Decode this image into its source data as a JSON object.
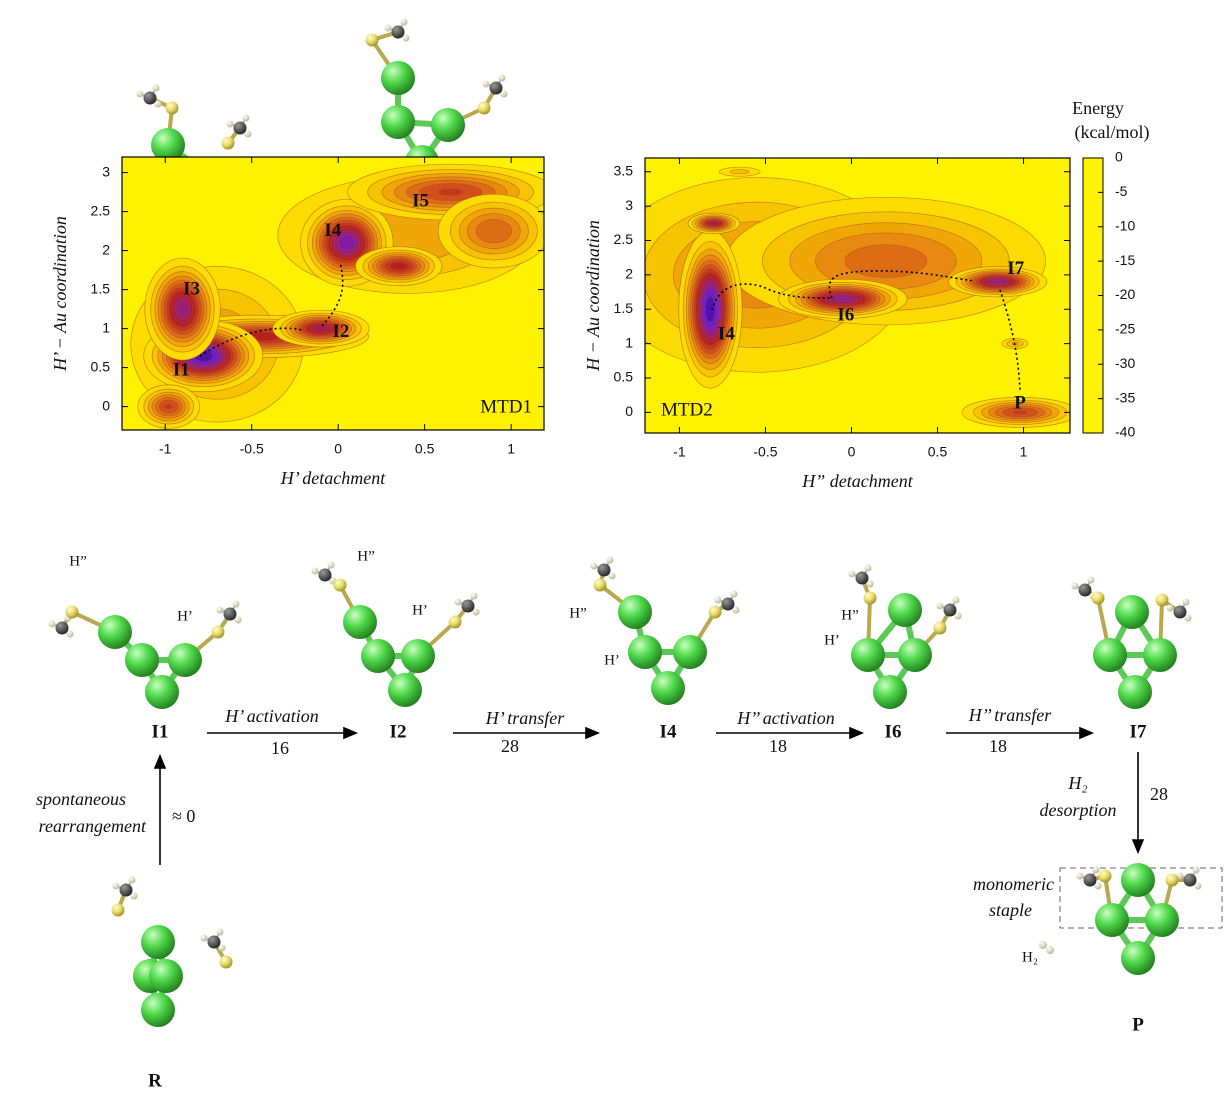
{
  "chart_data": [
    {
      "type": "heatmap",
      "label": "MTD1",
      "xlabel": "H’ detachment",
      "ylabel": "H’ − Au coordination",
      "xlim": [
        -1.25,
        1.19
      ],
      "ylim": [
        -0.3,
        3.2
      ],
      "xticks": [
        -1,
        -0.5,
        0,
        0.5,
        1
      ],
      "yticks": [
        0,
        0.5,
        1,
        1.5,
        2,
        2.5,
        3
      ],
      "minima": [
        {
          "name": null,
          "x": -0.7,
          "y": 0.8,
          "energy": -10,
          "sx": 0.3,
          "sy": 0.6
        },
        {
          "name": null,
          "x": 0.4,
          "y": 2.2,
          "energy": -10,
          "sx": 0.45,
          "sy": 0.45
        },
        {
          "name": null,
          "x": -0.45,
          "y": 0.9,
          "energy": -22,
          "sx": 0.3,
          "sy": 0.13
        },
        {
          "name": "I1",
          "x": -0.78,
          "y": 0.65,
          "energy": -35,
          "sx": 0.15,
          "sy": 0.2
        },
        {
          "name": "I2",
          "x": -0.1,
          "y": 1.0,
          "energy": -25,
          "sx": 0.13,
          "sy": 0.11
        },
        {
          "name": "I3",
          "x": -0.9,
          "y": 1.25,
          "energy": -27,
          "sx": 0.1,
          "sy": 0.3
        },
        {
          "name": null,
          "x": -0.98,
          "y": 0.0,
          "energy": -18,
          "sx": 0.09,
          "sy": 0.14
        },
        {
          "name": "I4",
          "x": 0.05,
          "y": 2.1,
          "energy": -30,
          "sx": 0.12,
          "sy": 0.25
        },
        {
          "name": null,
          "x": 0.35,
          "y": 1.8,
          "energy": -22,
          "sx": 0.12,
          "sy": 0.12
        },
        {
          "name": "I5",
          "x": 0.65,
          "y": 2.75,
          "energy": -18,
          "sx": 0.3,
          "sy": 0.18
        },
        {
          "name": null,
          "x": 0.9,
          "y": 2.25,
          "energy": -15,
          "sx": 0.17,
          "sy": 0.25
        }
      ]
    },
    {
      "type": "heatmap",
      "label": "MTD2",
      "xlabel": "H” detachment",
      "ylabel": "H − Au coordination",
      "xlim": [
        -1.2,
        1.27
      ],
      "ylim": [
        -0.3,
        3.7
      ],
      "xticks": [
        -1,
        -0.5,
        0,
        0.5,
        1
      ],
      "yticks": [
        0,
        0.5,
        1,
        1.5,
        2,
        2.5,
        3,
        3.5
      ],
      "colorbar": {
        "label": [
          "Energy",
          "(kcal/mol)"
        ],
        "lim": [
          -40,
          0
        ],
        "ticks": [
          0,
          -5,
          -10,
          -15,
          -20,
          -25,
          -30,
          -35,
          -40
        ],
        "colors": [
          "#fff200",
          "#f6c400",
          "#e88a10",
          "#d2501a",
          "#b8201e",
          "#9a1e78",
          "#6a1ad8",
          "#3a0a80",
          "#000000"
        ]
      },
      "minima": [
        {
          "name": null,
          "x": -0.55,
          "y": 2.0,
          "energy": -12,
          "sx": 0.5,
          "sy": 0.8
        },
        {
          "name": null,
          "x": 0.2,
          "y": 2.2,
          "energy": -14,
          "sx": 0.5,
          "sy": 0.5
        },
        {
          "name": "I4",
          "x": -0.82,
          "y": 1.5,
          "energy": -35,
          "sx": 0.08,
          "sy": 0.5
        },
        {
          "name": null,
          "x": -0.8,
          "y": 2.75,
          "energy": -25,
          "sx": 0.07,
          "sy": 0.07
        },
        {
          "name": "I6",
          "x": -0.05,
          "y": 1.65,
          "energy": -28,
          "sx": 0.17,
          "sy": 0.13
        },
        {
          "name": "I7",
          "x": 0.85,
          "y": 1.9,
          "energy": -28,
          "sx": 0.13,
          "sy": 0.1
        },
        {
          "name": "P",
          "x": 0.98,
          "y": 0.0,
          "energy": -18,
          "sx": 0.17,
          "sy": 0.11
        },
        {
          "name": null,
          "x": 0.95,
          "y": 1.0,
          "energy": -8,
          "sx": 0.05,
          "sy": 0.05
        },
        {
          "name": null,
          "x": -0.65,
          "y": 3.5,
          "energy": -6,
          "sx": 0.09,
          "sy": 0.05
        }
      ]
    }
  ],
  "scheme": {
    "states": [
      "I1",
      "I2",
      "I4",
      "I6",
      "I7",
      "P",
      "R"
    ],
    "steps": [
      {
        "label": [
          "H’ activation"
        ],
        "barrier": 16
      },
      {
        "label": [
          "H’ transfer"
        ],
        "barrier": 28
      },
      {
        "label": [
          "H’’ activation"
        ],
        "barrier": 18
      },
      {
        "label": [
          "H’’ transfer"
        ],
        "barrier": 18
      },
      {
        "label": [
          "H₂",
          "desorption"
        ],
        "barrier": 28
      },
      {
        "label": [
          "spontaneous",
          "rearrangement"
        ],
        "barrier": "≈ 0"
      }
    ],
    "atom_labels": [
      "H”",
      "H’",
      "H”",
      "H’",
      "H”",
      "H’",
      "H”",
      "H’",
      "H₂"
    ],
    "box_label": [
      "monomeric",
      "staple"
    ]
  }
}
